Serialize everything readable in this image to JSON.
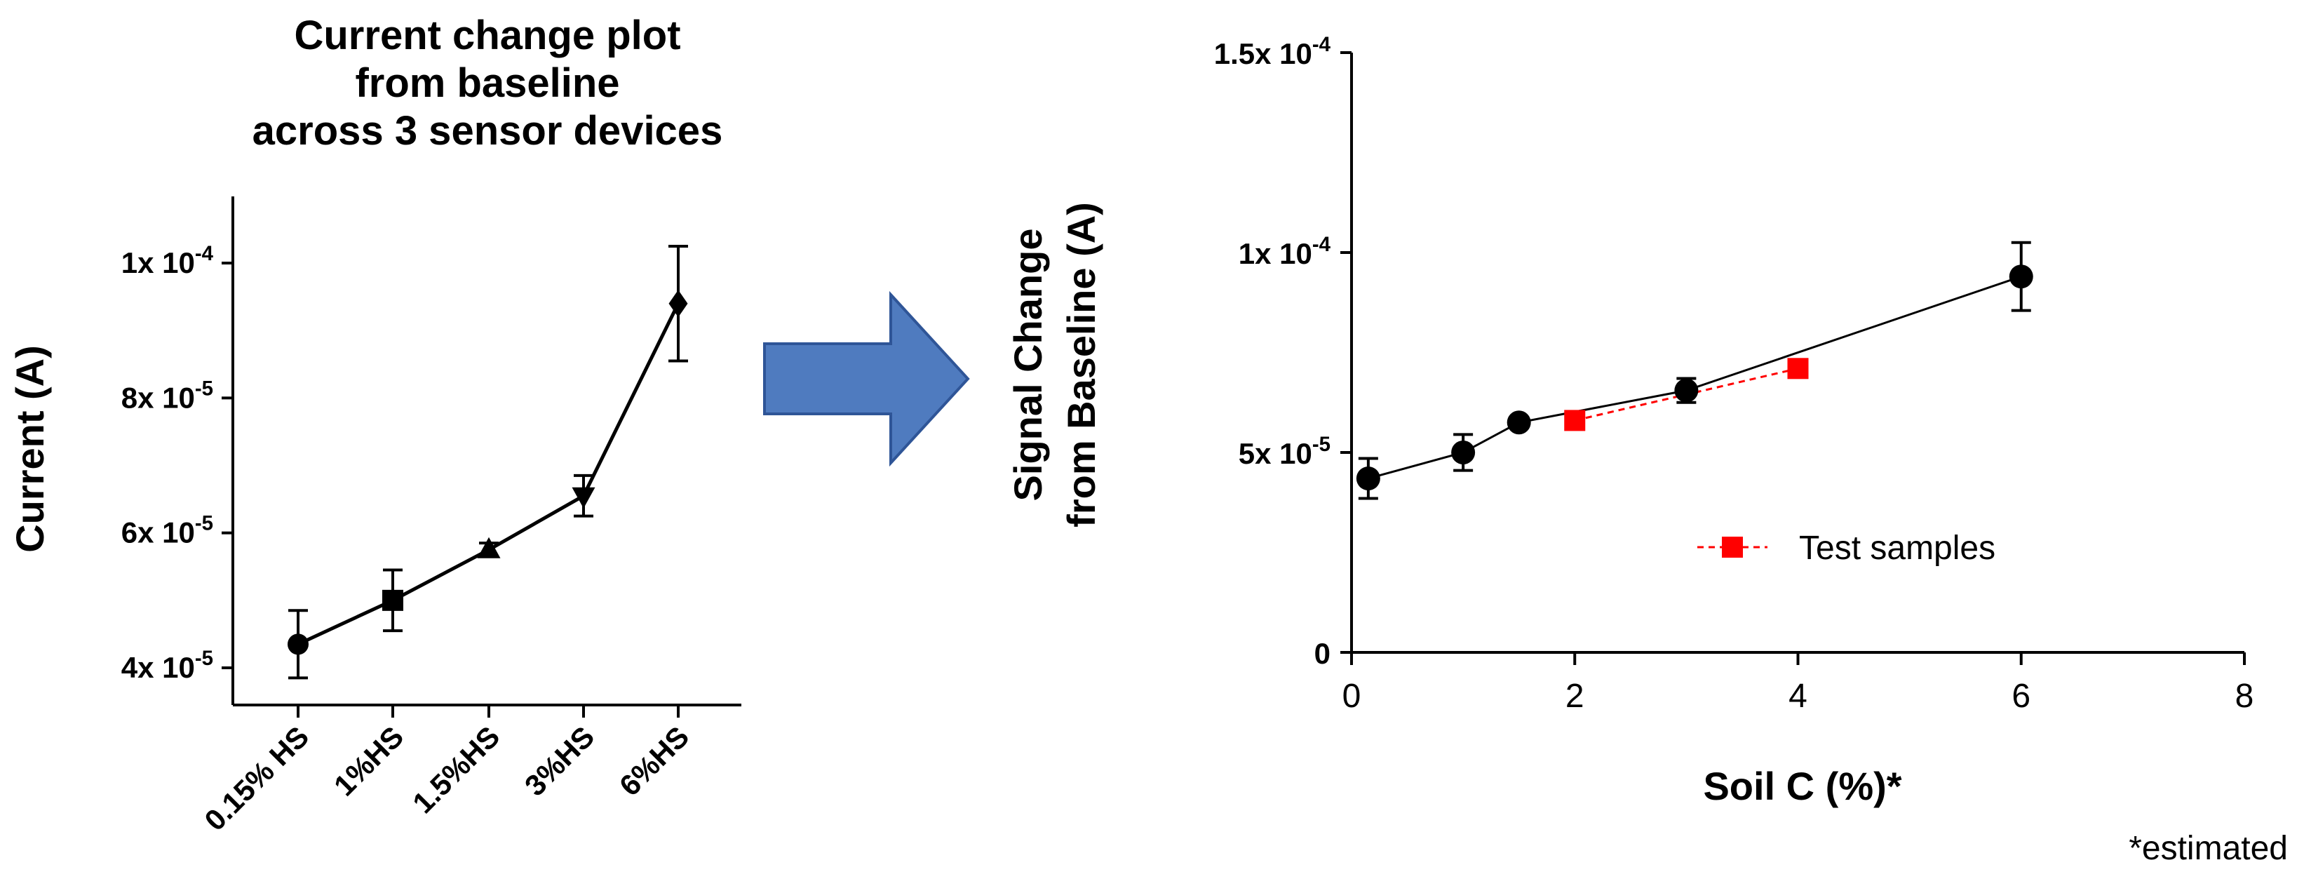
{
  "chart_data": [
    {
      "type": "line",
      "title": "Current change plot from baseline across 3 sensor devices",
      "title_lines": [
        "Current change plot",
        "from baseline",
        "across 3 sensor devices"
      ],
      "xlabel": "",
      "ylabel": "Current (A)",
      "categories": [
        "0.15% HS",
        "1%HS",
        "1.5%HS",
        "3%HS",
        "6%HS"
      ],
      "y_ticks": [
        {
          "value": 4e-05,
          "base": "4x 10",
          "exp": "-5"
        },
        {
          "value": 6e-05,
          "base": "6x 10",
          "exp": "-5"
        },
        {
          "value": 8e-05,
          "base": "8x 10",
          "exp": "-5"
        },
        {
          "value": 0.0001,
          "base": "1x 10",
          "exp": "-4"
        }
      ],
      "ylim": [
        3.4e-05,
        0.00011
      ],
      "series": [
        {
          "values": [
            4.35e-05,
            5e-05,
            5.75e-05,
            6.55e-05,
            9.4e-05
          ],
          "errors": [
            5e-06,
            4.5e-06,
            1e-06,
            3e-06,
            8.5e-06
          ],
          "markers": [
            "circle",
            "square",
            "triangle-up",
            "triangle-down",
            "diamond"
          ],
          "color": "#000000"
        }
      ],
      "grid": false,
      "legend": "none"
    },
    {
      "type": "line",
      "title": "",
      "xlabel": "Soil C (%)*",
      "ylabel_lines": [
        "Signal Change",
        "from Baseline (A)"
      ],
      "x_ticks": [
        0,
        2,
        4,
        6,
        8
      ],
      "xlim": [
        0,
        8
      ],
      "y_ticks": [
        {
          "value": 0,
          "base": "0",
          "exp": ""
        },
        {
          "value": 5e-05,
          "base": "5x 10",
          "exp": "-5"
        },
        {
          "value": 0.0001,
          "base": "1x 10",
          "exp": "-4"
        },
        {
          "value": 0.00015,
          "base": "1.5x 10",
          "exp": "-4"
        }
      ],
      "ylim": [
        0,
        0.00015
      ],
      "series": [
        {
          "x": [
            0.15,
            1,
            1.5,
            3,
            6
          ],
          "y": [
            4.35e-05,
            5e-05,
            5.75e-05,
            6.55e-05,
            9.4e-05
          ],
          "errors": [
            5e-06,
            4.5e-06,
            1e-06,
            3e-06,
            8.5e-06
          ],
          "marker": "circle",
          "color": "#000000",
          "line": "solid"
        },
        {
          "name": "Test samples",
          "x": [
            2,
            4
          ],
          "y": [
            5.8e-05,
            7.1e-05
          ],
          "marker": "square",
          "color": "#ff0000",
          "line": "dashed"
        }
      ],
      "legend": "lower-right",
      "footnote": "*estimated",
      "grid": false
    }
  ],
  "arrow": {
    "color": "#4f7bbf",
    "stroke": "#2f5597",
    "icon": "right-arrow-icon"
  }
}
